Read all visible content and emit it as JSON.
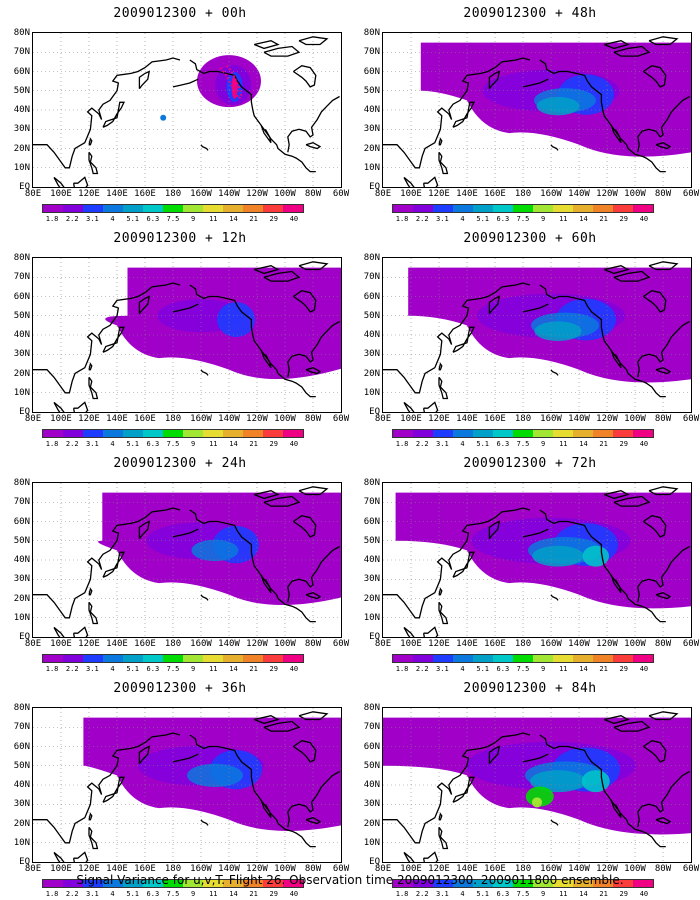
{
  "figure": {
    "footer": "Signal Variance for u,v,T. Flight 26. Observation time 2009012300. 2009011800 ensemble."
  },
  "axes": {
    "lat_labels": [
      "80N",
      "70N",
      "60N",
      "50N",
      "40N",
      "30N",
      "20N",
      "10N",
      "EQ"
    ],
    "lon_labels": [
      "80E",
      "100E",
      "120E",
      "140E",
      "160E",
      "180",
      "160W",
      "140W",
      "120W",
      "100W",
      "80W",
      "60W"
    ],
    "lat_range": [
      0,
      80
    ],
    "lon_range_east": [
      80,
      300
    ]
  },
  "colorbar": {
    "labels": [
      "1.8",
      "2.2",
      "3.1",
      "4",
      "5.1",
      "6.3",
      "7.5",
      "9",
      "11",
      "14",
      "21",
      "29",
      "40"
    ],
    "colors": [
      "#a000c8",
      "#8200dc",
      "#1e3cff",
      "#0a78dc",
      "#00a0c8",
      "#00c8c8",
      "#00dc00",
      "#a0e632",
      "#e6dc32",
      "#e6af2d",
      "#f08228",
      "#fa3c3c",
      "#f00082"
    ]
  },
  "panels": [
    {
      "title": "2009012300 + 00h",
      "column": 0,
      "row": 0,
      "spread_level": 0.05,
      "max_level": 0.35
    },
    {
      "title": "2009012300 + 12h",
      "column": 0,
      "row": 1,
      "spread_level": 0.25,
      "max_level": 0.35
    },
    {
      "title": "2009012300 + 24h",
      "column": 0,
      "row": 2,
      "spread_level": 0.45,
      "max_level": 0.35
    },
    {
      "title": "2009012300 + 36h",
      "column": 0,
      "row": 3,
      "spread_level": 0.6,
      "max_level": 0.35
    },
    {
      "title": "2009012300 + 48h",
      "column": 1,
      "row": 0,
      "spread_level": 0.7,
      "max_level": 0.4
    },
    {
      "title": "2009012300 + 60h",
      "column": 1,
      "row": 1,
      "spread_level": 0.8,
      "max_level": 0.45
    },
    {
      "title": "2009012300 + 72h",
      "column": 1,
      "row": 2,
      "spread_level": 0.9,
      "max_level": 0.55
    },
    {
      "title": "2009012300 + 84h",
      "column": 1,
      "row": 3,
      "spread_level": 1.0,
      "max_level": 0.65
    }
  ]
}
